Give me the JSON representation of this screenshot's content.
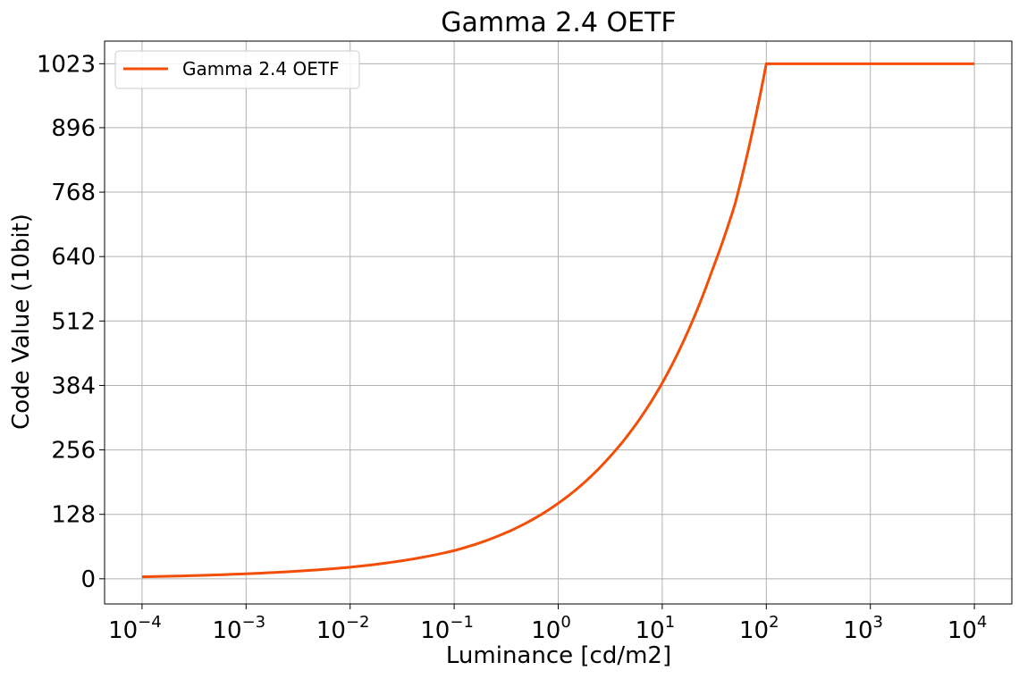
{
  "chart_data": {
    "type": "line",
    "title": "Gamma 2.4 OETF",
    "xlabel": "Luminance [cd/m2]",
    "ylabel": "Code Value (10bit)",
    "x_scale": "log",
    "xlim": [
      0.0001,
      10000
    ],
    "ylim": [
      -50,
      1068
    ],
    "x_ticks": [
      {
        "base": "10",
        "exp": "−4",
        "value": 0.0001
      },
      {
        "base": "10",
        "exp": "−3",
        "value": 0.001
      },
      {
        "base": "10",
        "exp": "−2",
        "value": 0.01
      },
      {
        "base": "10",
        "exp": "−1",
        "value": 0.1
      },
      {
        "base": "10",
        "exp": "0",
        "value": 1
      },
      {
        "base": "10",
        "exp": "1",
        "value": 10
      },
      {
        "base": "10",
        "exp": "2",
        "value": 100
      },
      {
        "base": "10",
        "exp": "3",
        "value": 1000
      },
      {
        "base": "10",
        "exp": "4",
        "value": 10000
      }
    ],
    "y_ticks": [
      0,
      128,
      256,
      384,
      512,
      640,
      768,
      896,
      1023
    ],
    "y_tick_labels": [
      "0",
      "128",
      "256",
      "384",
      "512",
      "640",
      "768",
      "896",
      "1023"
    ],
    "grid": true,
    "legend": {
      "placement": "top-left"
    },
    "series": [
      {
        "name": "Gamma 2.4 OETF",
        "color": "#f24e07",
        "x": [
          0.0001,
          0.001,
          0.01,
          0.1,
          1,
          3,
          10,
          30,
          50,
          100,
          1000,
          10000
        ],
        "y": [
          4,
          10,
          23,
          56,
          150,
          238,
          389,
          611,
          744,
          1023,
          1023,
          1023
        ]
      }
    ]
  }
}
